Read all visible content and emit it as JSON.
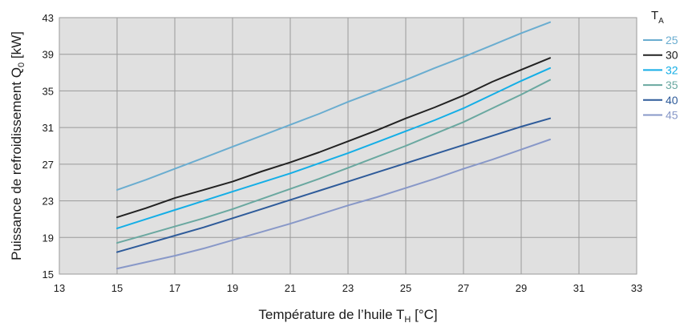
{
  "chart_data": {
    "type": "line",
    "xlabel": {
      "main": "Température de l’huile T",
      "sub": "H",
      "unit": " [°C]"
    },
    "ylabel": {
      "main": "Puissance de refroidissement Q",
      "sub": "0",
      "unit": " [kW]"
    },
    "xlim": [
      13,
      33
    ],
    "ylim": [
      15,
      43
    ],
    "x_ticks": [
      13,
      15,
      17,
      19,
      21,
      23,
      25,
      27,
      29,
      31,
      33
    ],
    "y_ticks": [
      15,
      19,
      23,
      27,
      31,
      35,
      39,
      43
    ],
    "grid": true,
    "plot_background": "#e0e0e0",
    "legend": {
      "title_main": "T",
      "title_sub": "A",
      "placement": "top-right"
    },
    "x": [
      15,
      16,
      17,
      18,
      19,
      20,
      21,
      22,
      23,
      24,
      25,
      26,
      27,
      28,
      29,
      30
    ],
    "series": [
      {
        "name": "25",
        "color": "#6aadd0",
        "values": [
          24.2,
          25.3,
          26.5,
          27.7,
          28.9,
          30.1,
          31.3,
          32.5,
          33.8,
          35.0,
          36.2,
          37.5,
          38.7,
          40.0,
          41.3,
          42.5
        ]
      },
      {
        "name": "30",
        "color": "#222222",
        "values": [
          21.2,
          22.2,
          23.3,
          24.2,
          25.1,
          26.2,
          27.2,
          28.3,
          29.5,
          30.7,
          32.0,
          33.2,
          34.5,
          36.0,
          37.3,
          38.6
        ]
      },
      {
        "name": "32",
        "color": "#14aee6",
        "values": [
          20.0,
          21.0,
          22.0,
          23.0,
          24.0,
          25.0,
          26.0,
          27.1,
          28.2,
          29.4,
          30.6,
          31.8,
          33.1,
          34.6,
          36.1,
          37.5
        ]
      },
      {
        "name": "35",
        "color": "#6aa8a0",
        "values": [
          18.4,
          19.3,
          20.2,
          21.1,
          22.1,
          23.2,
          24.3,
          25.4,
          26.6,
          27.8,
          29.0,
          30.3,
          31.6,
          33.1,
          34.6,
          36.2
        ]
      },
      {
        "name": "40",
        "color": "#2e5b9a",
        "values": [
          17.4,
          18.3,
          19.2,
          20.1,
          21.1,
          22.1,
          23.1,
          24.1,
          25.1,
          26.1,
          27.1,
          28.1,
          29.1,
          30.1,
          31.1,
          32.0
        ]
      },
      {
        "name": "45",
        "color": "#8898c8",
        "values": [
          15.6,
          16.3,
          17.0,
          17.8,
          18.7,
          19.6,
          20.5,
          21.5,
          22.5,
          23.4,
          24.4,
          25.4,
          26.5,
          27.5,
          28.6,
          29.7
        ]
      }
    ]
  }
}
